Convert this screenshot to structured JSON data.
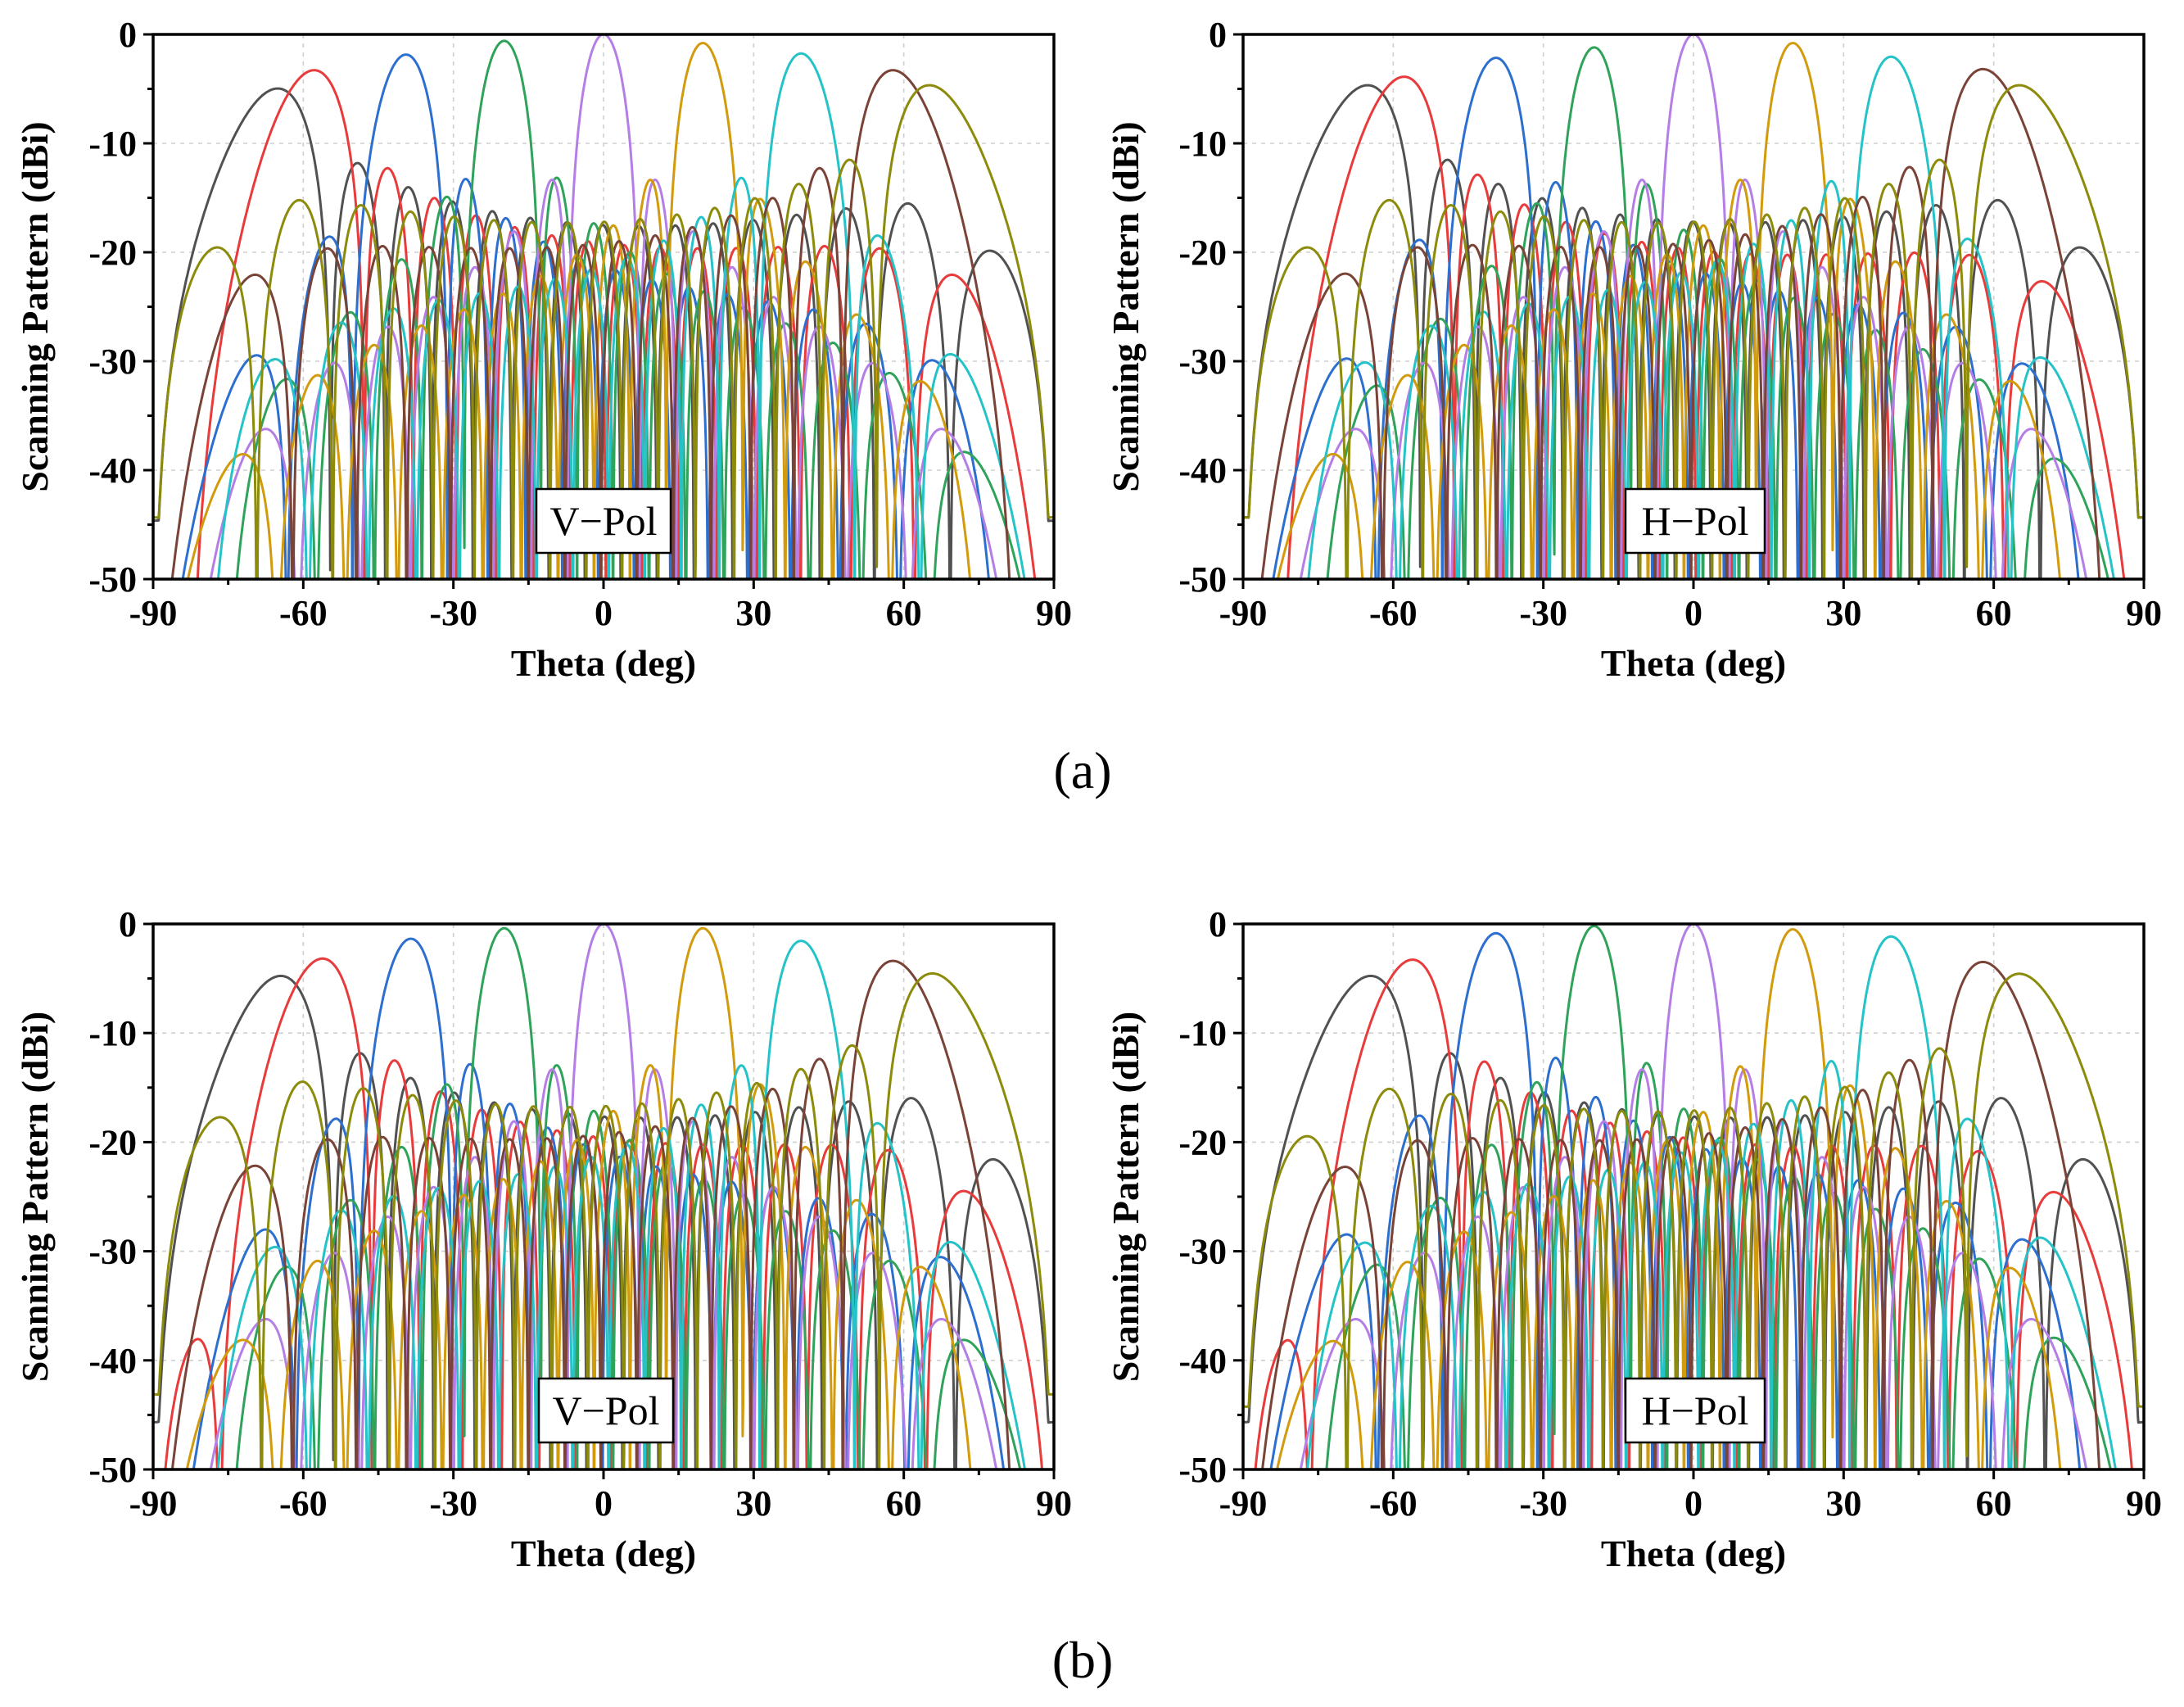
{
  "captions": [
    "(a)",
    "(b)"
  ],
  "series_colors": [
    "#515151",
    "#e83b3b",
    "#2d6fcf",
    "#30a35b",
    "#b57ee6",
    "#d29b0d",
    "#25c3c8",
    "#7a4338",
    "#8c8b0b"
  ],
  "chart_data": [
    {
      "type": "line",
      "panel": "(a) V-Pol",
      "annotation": "V−Pol",
      "xlabel": "Theta (deg)",
      "ylabel": "Scanning Pattern (dBi)",
      "xlim": [
        -90,
        90
      ],
      "ylim": [
        -50,
        0
      ],
      "xticks": [
        "-90",
        "-60",
        "-30",
        "0",
        "30",
        "60",
        "90"
      ],
      "yticks": [
        "0",
        "-10",
        "-20",
        "-30",
        "-40",
        "-50"
      ],
      "grid": true,
      "series": [
        {
          "scan": -70,
          "peak": -6.5,
          "sidelobe": -20.8
        },
        {
          "scan": -60,
          "peak": -3.7,
          "sidelobe": -19.5
        },
        {
          "scan": -40,
          "peak": -1.9,
          "sidelobe": -19.0
        },
        {
          "scan": -20,
          "peak": -0.6,
          "sidelobe": -18.5
        },
        {
          "scan": 0,
          "peak": 0.0,
          "sidelobe": -16.0
        },
        {
          "scan": 20,
          "peak": -0.8,
          "sidelobe": -19.0
        },
        {
          "scan": 40,
          "peak": -1.8,
          "sidelobe": -20.3
        },
        {
          "scan": 60,
          "peak": -3.7,
          "sidelobe": -19.8
        },
        {
          "scan": 70,
          "peak": -6.2,
          "sidelobe": -20.8
        }
      ]
    },
    {
      "type": "line",
      "panel": "(a) H-Pol",
      "annotation": "H−Pol",
      "xlabel": "Theta (deg)",
      "ylabel": "Scanning Pattern (dBi)",
      "xlim": [
        -90,
        90
      ],
      "ylim": [
        -50,
        0
      ],
      "xticks": [
        "-90",
        "-60",
        "-30",
        "0",
        "30",
        "60",
        "90"
      ],
      "yticks": [
        "0",
        "-10",
        "-20",
        "-30",
        "-40",
        "-50"
      ],
      "grid": true,
      "series": [
        {
          "scan": -70,
          "peak": -6.2,
          "sidelobe": -20.6
        },
        {
          "scan": -60,
          "peak": -4.3,
          "sidelobe": -20.0
        },
        {
          "scan": -40,
          "peak": -2.2,
          "sidelobe": -19.0
        },
        {
          "scan": -20,
          "peak": -1.2,
          "sidelobe": -17.5
        },
        {
          "scan": 0,
          "peak": 0.0,
          "sidelobe": -16.0
        },
        {
          "scan": 20,
          "peak": -0.8,
          "sidelobe": -18.5
        },
        {
          "scan": 40,
          "peak": -2.1,
          "sidelobe": -18.5
        },
        {
          "scan": 60,
          "peak": -3.6,
          "sidelobe": -18.5
        },
        {
          "scan": 70,
          "peak": -6.2,
          "sidelobe": -17.5
        }
      ]
    },
    {
      "type": "line",
      "panel": "(b) V-Pol",
      "annotation": "V−Pol",
      "xlabel": "Theta (deg)",
      "ylabel": "Scanning Pattern (dBi)",
      "xlim": [
        -90,
        90
      ],
      "ylim": [
        -50,
        0
      ],
      "xticks": [
        "-90",
        "-60",
        "-30",
        "0",
        "30",
        "60",
        "90"
      ],
      "yticks": [
        "0",
        "-10",
        "-20",
        "-30",
        "-40",
        "-50"
      ],
      "grid": true,
      "series": [
        {
          "scan": -69,
          "peak": -6.1,
          "sidelobe": -17.5
        },
        {
          "scan": -58,
          "peak": -3.5,
          "sidelobe": -20.3
        },
        {
          "scan": -39,
          "peak": -1.4,
          "sidelobe": -17.8
        },
        {
          "scan": -20,
          "peak": -0.4,
          "sidelobe": -16.5
        },
        {
          "scan": 0,
          "peak": 0.0,
          "sidelobe": -16.5
        },
        {
          "scan": 20,
          "peak": -0.4,
          "sidelobe": -16.5
        },
        {
          "scan": 40,
          "peak": -1.6,
          "sidelobe": -17.8
        },
        {
          "scan": 60,
          "peak": -3.8,
          "sidelobe": -20.0
        },
        {
          "scan": 71,
          "peak": -6.3,
          "sidelobe": -25.0
        }
      ]
    },
    {
      "type": "line",
      "panel": "(b) H-Pol",
      "annotation": "H−Pol",
      "xlabel": "Theta (deg)",
      "ylabel": "Scanning Pattern (dBi)",
      "xlim": [
        -90,
        90
      ],
      "ylim": [
        -50,
        0
      ],
      "xticks": [
        "-90",
        "-60",
        "-30",
        "0",
        "30",
        "60",
        "90"
      ],
      "yticks": [
        "0",
        "-10",
        "-20",
        "-30",
        "-40",
        "-50"
      ],
      "grid": true,
      "series": [
        {
          "scan": -69,
          "peak": -6.1,
          "sidelobe": -17.5
        },
        {
          "scan": -58,
          "peak": -3.6,
          "sidelobe": -24.8
        },
        {
          "scan": -40,
          "peak": -0.9,
          "sidelobe": -17.5
        },
        {
          "scan": -20,
          "peak": -0.2,
          "sidelobe": -18.8
        },
        {
          "scan": 0,
          "peak": 0.0,
          "sidelobe": -17.0
        },
        {
          "scan": 20,
          "peak": -0.5,
          "sidelobe": -18.8
        },
        {
          "scan": 40,
          "peak": -1.2,
          "sidelobe": -17.8
        },
        {
          "scan": 60,
          "peak": -3.9,
          "sidelobe": -19.5
        },
        {
          "scan": 70,
          "peak": -6.1,
          "sidelobe": -27.3
        }
      ]
    }
  ]
}
